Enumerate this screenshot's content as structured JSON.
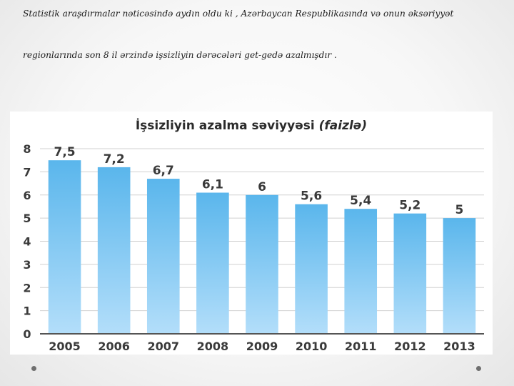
{
  "intro": {
    "line1": "Statistik araşdırmalar   nəticəsində   aydın oldu ki , Azərbaycan Respublikasında və onun əksəriyyət",
    "line2": "regionlarında   son 8 il ərzində işsizliyin   dərəcələri get-gedə azalmışdır ."
  },
  "colors": {
    "bar_top": "#5ab6ec",
    "bar_bottom": "#b3defa",
    "grid": "#d0d0d0",
    "axis": "#555555",
    "text": "#3a3a3a"
  },
  "chart_data": {
    "type": "bar",
    "title": "İşsizliyin azalma səviyyəsi",
    "title_unit": "(faizlə)",
    "xlabel": "",
    "ylabel": "",
    "categories": [
      "2005",
      "2006",
      "2007",
      "2008",
      "2009",
      "2010",
      "2011",
      "2012",
      "2013"
    ],
    "values": [
      7.5,
      7.2,
      6.7,
      6.1,
      6,
      5.6,
      5.4,
      5.2,
      5
    ],
    "value_labels": [
      "7,5",
      "7,2",
      "6,7",
      "6,1",
      "6",
      "5,6",
      "5,4",
      "5,2",
      "5"
    ],
    "ylim": [
      0,
      8
    ],
    "yticks": [
      "0",
      "1",
      "2",
      "3",
      "4",
      "5",
      "6",
      "7",
      "8"
    ],
    "grid": true,
    "legend": "none"
  }
}
